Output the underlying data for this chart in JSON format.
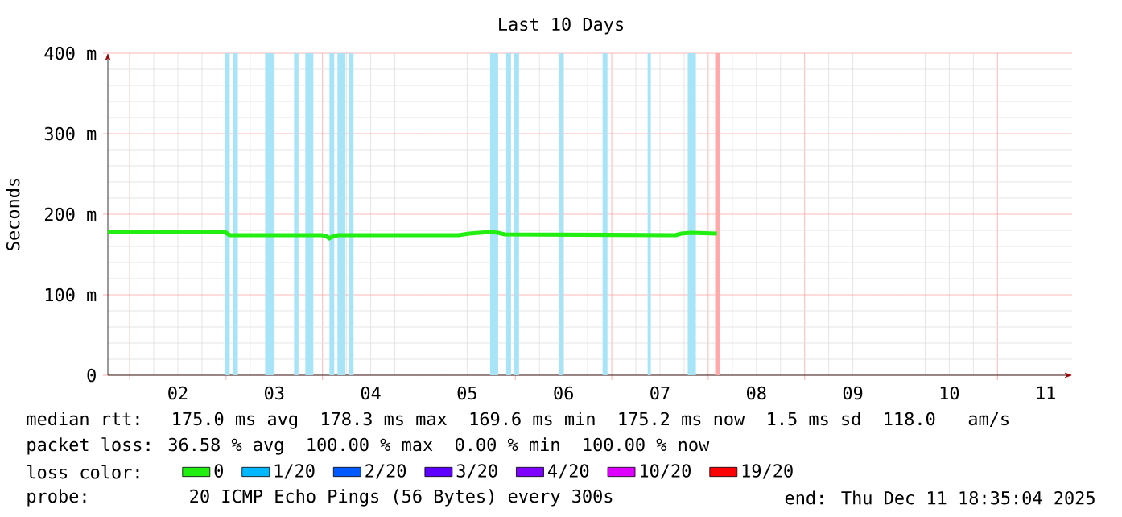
{
  "chart_data": {
    "type": "line",
    "title": "Last 10 Days",
    "ylabel": "Seconds",
    "legend_title": "loss color:",
    "xlim": [
      0.774,
      10.774
    ],
    "xticks": [
      {
        "value": 1,
        "label": null
      },
      {
        "value": 2,
        "label": null
      },
      {
        "value": 3,
        "label": null
      },
      {
        "value": 4,
        "label": null
      },
      {
        "value": 5,
        "label": null
      },
      {
        "value": 6,
        "label": null
      },
      {
        "value": 7,
        "label": null
      },
      {
        "value": 8,
        "label": null
      },
      {
        "value": 9,
        "label": null
      },
      {
        "value": 10,
        "label": null
      },
      {
        "value": 1.5,
        "label": "02"
      },
      {
        "value": 2.5,
        "label": "03"
      },
      {
        "value": 3.5,
        "label": "04"
      },
      {
        "value": 4.5,
        "label": "05"
      },
      {
        "value": 5.5,
        "label": "06"
      },
      {
        "value": 6.5,
        "label": "07"
      },
      {
        "value": 7.5,
        "label": "08"
      },
      {
        "value": 8.5,
        "label": "09"
      },
      {
        "value": 9.5,
        "label": "10"
      },
      {
        "value": 10.5,
        "label": "11"
      }
    ],
    "ylim": [
      0,
      400
    ],
    "yticks": [
      0,
      {
        "value": 100,
        "label": "100 m"
      },
      {
        "value": 200,
        "label": "200 m"
      },
      {
        "value": 300,
        "label": "300 m"
      },
      {
        "value": 400,
        "label": "400 m"
      }
    ],
    "grid": true,
    "legend": "bottom",
    "series": [
      {
        "name": "0",
        "color": "#22ee11",
        "x": [
          0.774,
          1.988,
          2.038,
          2.99,
          3.04,
          3.07,
          3.1,
          3.16,
          4.41,
          4.52,
          4.74,
          4.82,
          4.89,
          6.66,
          6.72,
          6.82,
          7.09
        ],
        "values": [
          178,
          178,
          174,
          174,
          173,
          170,
          172,
          174,
          174,
          176,
          178,
          177,
          175,
          174,
          176,
          177,
          176
        ]
      },
      {
        "name": "1/20",
        "color": "#00b8ff"
      },
      {
        "name": "2/20",
        "color": "#0059ff"
      },
      {
        "name": "3/20",
        "color": "#5e00ff"
      },
      {
        "name": "4/20",
        "color": "#7e00ff"
      },
      {
        "name": "10/20",
        "color": "#dd00ff"
      },
      {
        "name": "19/20",
        "color": "#ff0000"
      }
    ],
    "bands": [
      {
        "axis": "x",
        "from": 1.988,
        "to": 2.038,
        "color": "#a8e4f8"
      },
      {
        "axis": "x",
        "from": 2.072,
        "to": 2.122,
        "color": "#a8e4f8"
      },
      {
        "axis": "x",
        "from": 2.405,
        "to": 2.493,
        "color": "#a8e4f8"
      },
      {
        "axis": "x",
        "from": 2.705,
        "to": 2.75,
        "color": "#a8e4f8"
      },
      {
        "axis": "x",
        "from": 2.822,
        "to": 2.905,
        "color": "#a8e4f8"
      },
      {
        "axis": "x",
        "from": 3.072,
        "to": 3.122,
        "color": "#a8e4f8"
      },
      {
        "axis": "x",
        "from": 3.155,
        "to": 3.238,
        "color": "#a8e4f8"
      },
      {
        "axis": "x",
        "from": 3.272,
        "to": 3.322,
        "color": "#a8e4f8"
      },
      {
        "axis": "x",
        "from": 4.738,
        "to": 4.822,
        "color": "#a8e4f8"
      },
      {
        "axis": "x",
        "from": 4.905,
        "to": 4.955,
        "color": "#a8e4f8"
      },
      {
        "axis": "x",
        "from": 4.988,
        "to": 5.038,
        "color": "#a8e4f8"
      },
      {
        "axis": "x",
        "from": 5.455,
        "to": 5.5,
        "color": "#a8e4f8"
      },
      {
        "axis": "x",
        "from": 5.905,
        "to": 5.955,
        "color": "#a8e4f8"
      },
      {
        "axis": "x",
        "from": 6.372,
        "to": 6.405,
        "color": "#a8e4f8"
      },
      {
        "axis": "x",
        "from": 6.788,
        "to": 6.872,
        "color": "#a8e4f8"
      },
      {
        "axis": "x",
        "from": 7.072,
        "to": 7.122,
        "color": "#ffaaaa"
      }
    ],
    "annotations": [
      "median rtt:  175.0 ms avg  178.3 ms max  169.6 ms min  175.2 ms now  1.5 ms sd  118.0   am/s",
      "packet loss: 36.58 % avg  100.00 % max  0.00 % min  100.00 % now",
      "probe:       20 ICMP Echo Pings (56 Bytes) every 300s",
      "end: Thu Dec 11 18:35:04 2025"
    ]
  }
}
